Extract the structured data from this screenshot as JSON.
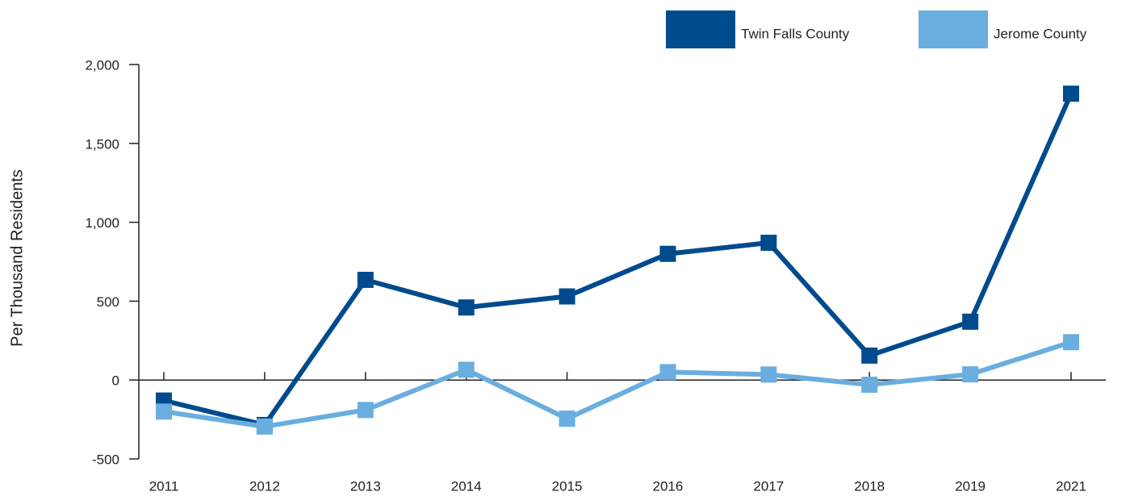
{
  "chart_data": {
    "type": "line",
    "y_label": "Per Thousand Residents",
    "categories": [
      "2011",
      "2012",
      "2013",
      "2014",
      "2015",
      "2016",
      "2017",
      "2018",
      "2019",
      "2021"
    ],
    "series": [
      {
        "name": "Twin Falls County",
        "color": "#004b8d",
        "values": [
          -130,
          -285,
          635,
          460,
          530,
          800,
          870,
          155,
          370,
          1815
        ]
      },
      {
        "name": "Jerome County",
        "color": "#6aaee0",
        "values": [
          -200,
          -295,
          -190,
          65,
          -245,
          50,
          35,
          -30,
          36,
          240
        ]
      }
    ],
    "ylim": [
      -500,
      2000
    ],
    "yticks": [
      -500,
      0,
      500,
      {
        "value": 1000,
        "label": "1,000"
      },
      {
        "value": 1500,
        "label": "1,500"
      },
      {
        "value": 2000,
        "label": "2,000"
      }
    ],
    "legend": "top-right"
  }
}
